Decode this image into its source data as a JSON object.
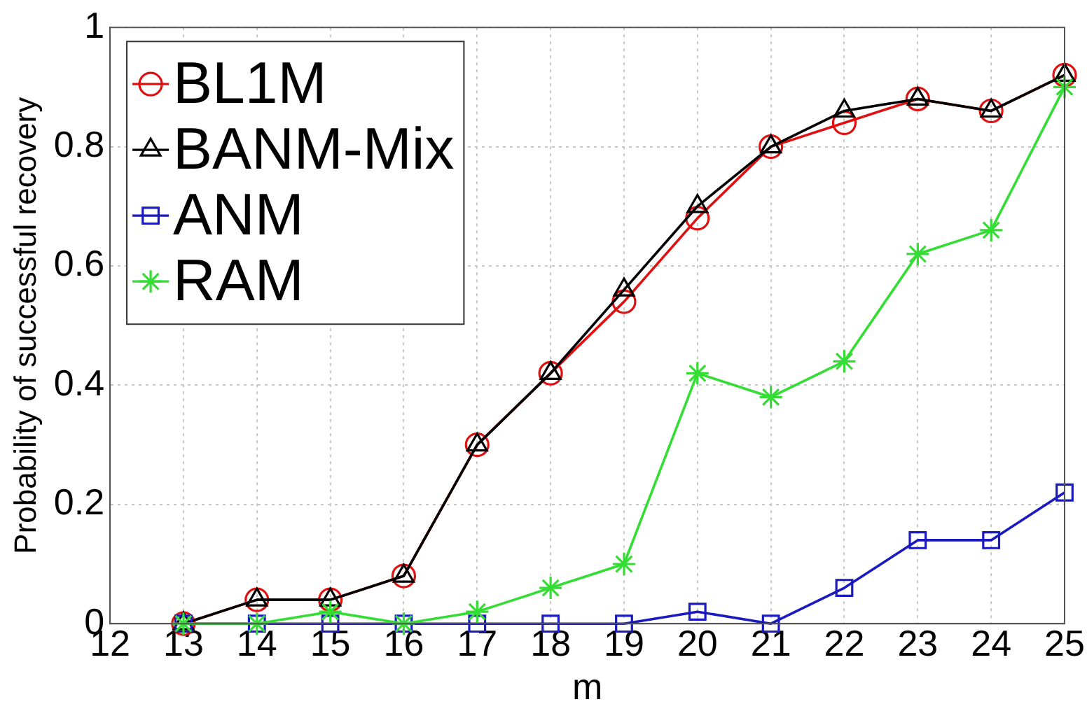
{
  "chart_data": {
    "type": "line",
    "xlabel": "m",
    "ylabel": "Probability of successful recovery",
    "x": [
      13,
      14,
      15,
      16,
      17,
      18,
      19,
      20,
      21,
      22,
      23,
      24,
      25
    ],
    "series": [
      {
        "name": "BL1M",
        "color": "#e01010",
        "marker": "circle",
        "values": [
          0,
          0.04,
          0.04,
          0.08,
          0.3,
          0.42,
          0.54,
          0.68,
          0.8,
          0.84,
          0.88,
          0.86,
          0.92
        ]
      },
      {
        "name": "BANM-Mix",
        "color": "#000000",
        "marker": "triangle",
        "values": [
          0,
          0.04,
          0.04,
          0.08,
          0.3,
          0.42,
          0.56,
          0.7,
          0.8,
          0.86,
          0.88,
          0.86,
          0.92
        ]
      },
      {
        "name": "ANM",
        "color": "#1a1ac0",
        "marker": "square",
        "values": [
          0,
          0,
          0,
          0,
          0,
          0,
          0,
          0.02,
          0,
          0.06,
          0.14,
          0.14,
          0.22
        ]
      },
      {
        "name": "RAM",
        "color": "#33dd33",
        "marker": "cross",
        "values": [
          0,
          0,
          0.02,
          0,
          0.02,
          0.06,
          0.1,
          0.42,
          0.38,
          0.44,
          0.62,
          0.66,
          0.9
        ]
      }
    ],
    "xlim": [
      12,
      25
    ],
    "xticks": [
      12,
      13,
      14,
      15,
      16,
      17,
      18,
      19,
      20,
      21,
      22,
      23,
      24,
      25
    ],
    "ylim": [
      0,
      1
    ],
    "yticks": [
      0,
      0.2,
      0.4,
      0.6,
      0.8,
      1
    ],
    "grid": true,
    "legend": "top left",
    "line_style": "solid"
  }
}
